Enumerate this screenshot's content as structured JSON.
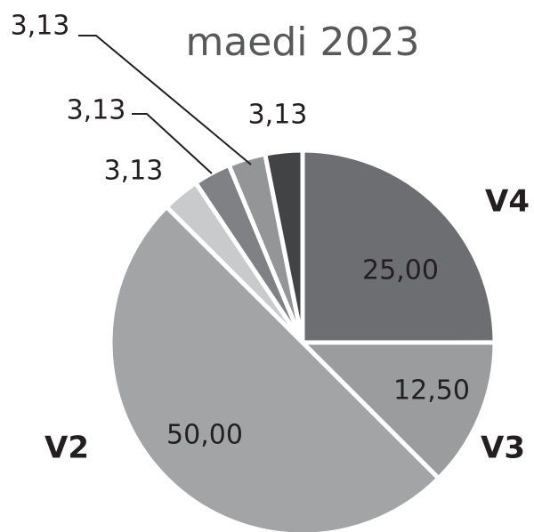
{
  "chart_data": {
    "type": "pie",
    "title": "maedi 2023",
    "categories": [
      "V4",
      "V3",
      "V2",
      null,
      null,
      null,
      null
    ],
    "values": [
      25,
      12.5,
      50,
      3.13,
      3.13,
      3.13,
      3.13
    ],
    "value_labels": [
      "25,00",
      "12,50",
      "50,00",
      "3,13",
      "3,13",
      "3,13",
      "3,13"
    ],
    "colors": [
      "#6d6e71",
      "#9b9c9e",
      "#a3a4a6",
      "#c9cacc",
      "#808184",
      "#949597",
      "#424345"
    ]
  }
}
